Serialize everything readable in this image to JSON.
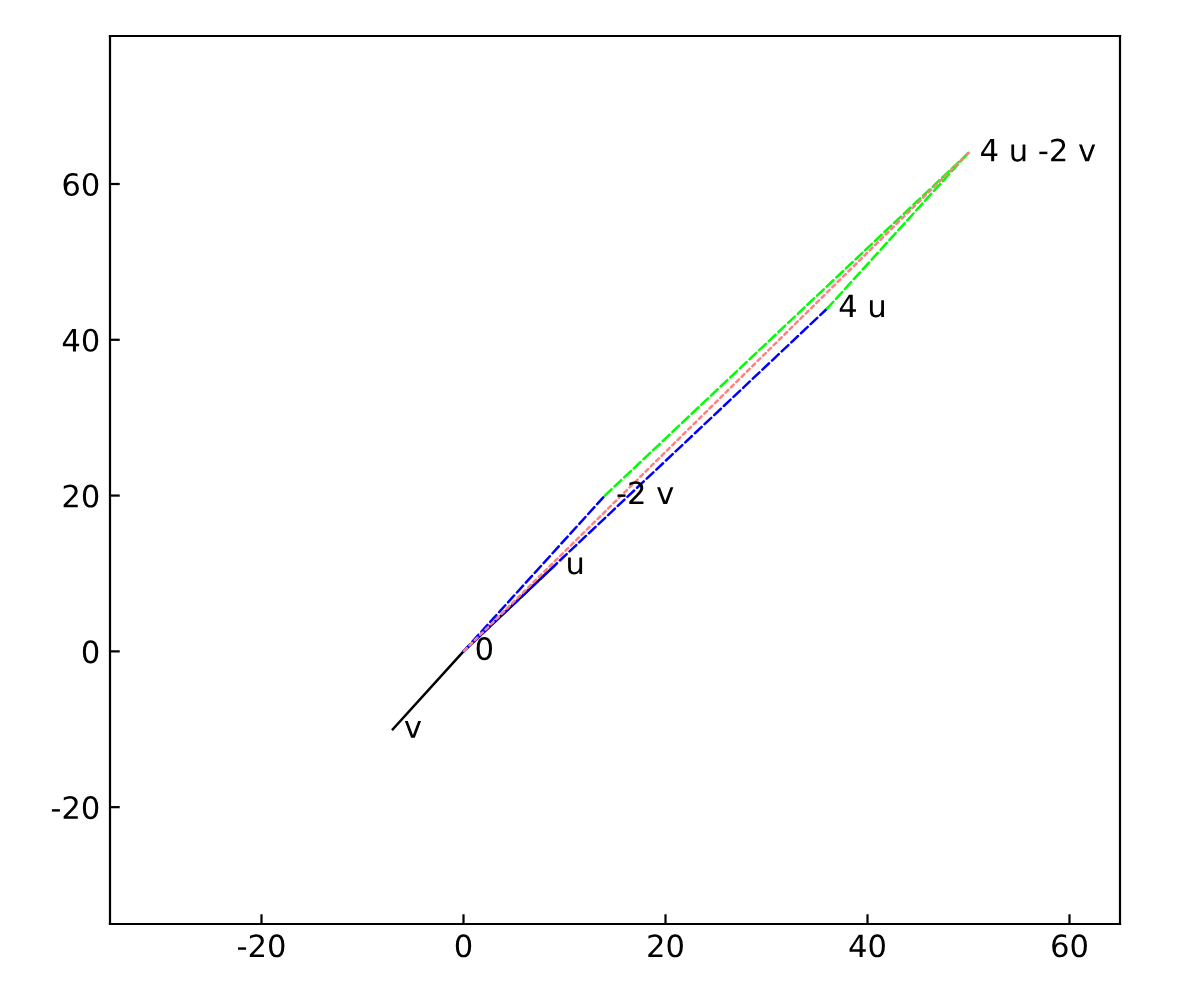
{
  "chart_data": {
    "type": "line",
    "series": [
      {
        "color": "#000000",
        "line_style": "solid",
        "x": [
          -7,
          0,
          9
        ],
        "values": [
          -10,
          0,
          11
        ]
      },
      {
        "color": "#0000ff",
        "line_style": "dashed",
        "x": [
          0,
          36
        ],
        "values": [
          0,
          44
        ]
      },
      {
        "color": "#0000ff",
        "line_style": "dashed",
        "x": [
          0,
          14
        ],
        "values": [
          0,
          20
        ]
      },
      {
        "color": "#ff8080",
        "line_style": "dotted",
        "x": [
          50,
          0
        ],
        "values": [
          64,
          0
        ]
      },
      {
        "color": "#00ff00",
        "line_style": "dashed",
        "x": [
          14,
          50
        ],
        "values": [
          20,
          64
        ]
      },
      {
        "color": "#00ff00",
        "line_style": "dashed",
        "x": [
          36,
          50
        ],
        "values": [
          44,
          64
        ]
      }
    ],
    "annotations": [
      {
        "text": "0",
        "x": 0,
        "y": 0
      },
      {
        "text": "u",
        "x": 9,
        "y": 11
      },
      {
        "text": "v",
        "x": -7,
        "y": -10
      },
      {
        "text": "-2 v",
        "x": 14,
        "y": 20
      },
      {
        "text": "4 u",
        "x": 36,
        "y": 44
      },
      {
        "text": "4 u -2 v",
        "x": 50,
        "y": 64
      }
    ],
    "xlim": [
      -35,
      65
    ],
    "ylim": [
      -35,
      79
    ],
    "xticks": [
      -20,
      0,
      20,
      40,
      60
    ],
    "yticks": [
      -20,
      0,
      20,
      40,
      60
    ],
    "grid": false,
    "legend": false
  }
}
